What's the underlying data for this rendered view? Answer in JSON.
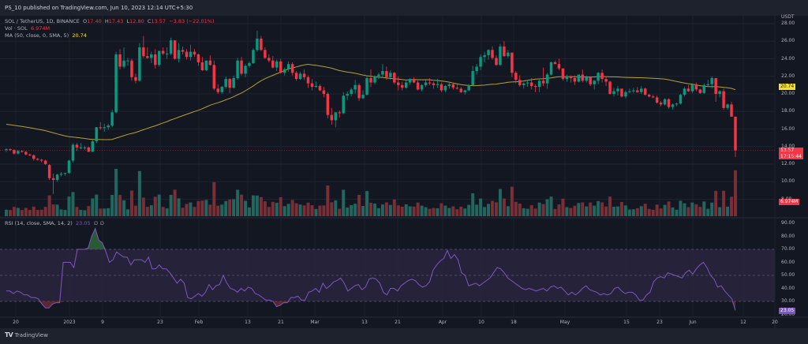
{
  "header": {
    "published": "PS_10 published on TradingView.com, Jun 10, 2023 12:14 UTC+5:30"
  },
  "legend": {
    "symbol": "SOL / TetherUS, 1D, BINANCE",
    "open_label": "O",
    "open": "17.40",
    "high_label": "H",
    "high": "17.43",
    "low_label": "L",
    "low": "12.80",
    "close_label": "C",
    "close": "13.57",
    "change": "−3.83 (−22.01%)",
    "volume_label": "Vol · SOL",
    "volume": "6.974M",
    "ma_label": "MA (50, close, 0, SMA, 5)",
    "ma_value": "20.74",
    "rsi_label": "RSI (14, close, SMA, 14, 2)",
    "rsi_value": "23.05",
    "rsi_extra1": "∅",
    "rsi_extra2": "∅"
  },
  "price_axis": {
    "currency": "USDT",
    "ticks": [
      "28.00",
      "26.00",
      "24.00",
      "22.00",
      "20.00",
      "18.00",
      "16.00",
      "14.00",
      "12.00",
      "10.00",
      "8.00"
    ],
    "ma_tag": "20.74",
    "last_price_tag": "13.57",
    "countdown_tag": "17:15:44",
    "volume_tag": "6.974M"
  },
  "rsi_axis": {
    "ticks": [
      "90.00",
      "80.00",
      "70.00",
      "60.00",
      "50.00",
      "40.00",
      "30.00",
      "20.00"
    ],
    "value_tag": "23.05"
  },
  "time_axis": {
    "labels": [
      "20",
      "2023",
      "9",
      "23",
      "Feb",
      "13",
      "21",
      "Mar",
      "13",
      "21",
      "Apr",
      "10",
      "18",
      "May",
      "15",
      "23",
      "Jun",
      "12",
      "20"
    ]
  },
  "footer": {
    "brand": "TradingView"
  },
  "colors": {
    "background": "#131722",
    "up": "#089981",
    "down": "#f23645",
    "ma": "#b5a22a",
    "rsi": "#7e57c2",
    "rsi_band": "#2a2540"
  },
  "chart_data": {
    "type": "candlestick",
    "title": "SOL / TetherUS, 1D, BINANCE",
    "ylabel": "USDT",
    "ylim": [
      8,
      28.5
    ],
    "x_range": "Dec 2022 – Jun 10, 2023",
    "last": {
      "open": 17.4,
      "high": 17.43,
      "low": 12.8,
      "close": 13.57,
      "change": -3.83,
      "change_pct": -22.01
    },
    "candles_ohlc": [
      [
        13.6,
        13.8,
        13.4,
        13.7
      ],
      [
        13.7,
        13.8,
        13.5,
        13.6
      ],
      [
        13.6,
        13.7,
        13.1,
        13.2
      ],
      [
        13.2,
        13.6,
        13.1,
        13.5
      ],
      [
        13.5,
        13.6,
        13.3,
        13.4
      ],
      [
        13.4,
        13.5,
        13.0,
        13.1
      ],
      [
        13.1,
        13.2,
        12.9,
        13.0
      ],
      [
        13.0,
        13.1,
        12.4,
        12.6
      ],
      [
        12.6,
        12.7,
        12.4,
        12.5
      ],
      [
        12.5,
        12.6,
        12.2,
        12.4
      ],
      [
        12.4,
        12.5,
        11.9,
        12.0
      ],
      [
        11.9,
        12.0,
        10.2,
        10.4
      ],
      [
        10.4,
        10.9,
        8.6,
        10.2
      ],
      [
        10.2,
        10.9,
        10.0,
        10.8
      ],
      [
        10.8,
        11.1,
        10.6,
        10.9
      ],
      [
        10.9,
        11.0,
        10.7,
        11.0
      ],
      [
        11.0,
        12.5,
        10.9,
        12.4
      ],
      [
        12.4,
        14.4,
        12.2,
        14.2
      ],
      [
        14.2,
        14.4,
        13.5,
        13.9
      ],
      [
        13.9,
        14.4,
        13.7,
        13.9
      ],
      [
        13.9,
        14.1,
        13.6,
        13.9
      ],
      [
        13.9,
        14.0,
        13.4,
        13.4
      ],
      [
        13.4,
        14.9,
        13.4,
        14.6
      ],
      [
        14.6,
        16.2,
        14.4,
        16.2
      ],
      [
        16.2,
        16.8,
        15.9,
        16.1
      ],
      [
        16.1,
        16.6,
        15.7,
        16.2
      ],
      [
        16.2,
        16.6,
        15.9,
        16.4
      ],
      [
        16.4,
        18.2,
        16.2,
        17.9
      ],
      [
        17.9,
        24.8,
        17.8,
        24.5
      ],
      [
        24.5,
        25.1,
        22.8,
        23.1
      ],
      [
        23.1,
        25.3,
        22.9,
        23.8
      ],
      [
        23.8,
        24.1,
        23.2,
        23.8
      ],
      [
        23.8,
        24.0,
        21.5,
        21.9
      ],
      [
        21.9,
        22.3,
        21.2,
        21.5
      ],
      [
        21.5,
        25.8,
        21.4,
        25.3
      ],
      [
        25.3,
        26.6,
        24.1,
        24.3
      ],
      [
        24.3,
        25.3,
        24.0,
        24.1
      ],
      [
        24.1,
        24.8,
        23.5,
        24.5
      ],
      [
        24.5,
        25.1,
        22.9,
        23.3
      ],
      [
        23.3,
        24.9,
        23.1,
        24.9
      ],
      [
        24.9,
        25.3,
        24.4,
        24.6
      ],
      [
        24.6,
        25.3,
        24.0,
        24.6
      ],
      [
        24.6,
        26.4,
        24.4,
        26.1
      ],
      [
        26.1,
        26.1,
        23.9,
        24.0
      ],
      [
        24.0,
        25.8,
        23.6,
        25.0
      ],
      [
        25.0,
        25.4,
        24.5,
        24.8
      ],
      [
        24.8,
        25.1,
        23.9,
        24.2
      ],
      [
        24.2,
        25.6,
        23.8,
        24.8
      ],
      [
        24.8,
        25.1,
        24.2,
        24.5
      ],
      [
        24.5,
        24.6,
        23.2,
        23.6
      ],
      [
        23.6,
        24.2,
        22.6,
        22.7
      ],
      [
        22.7,
        23.8,
        22.6,
        23.8
      ],
      [
        23.8,
        24.4,
        23.2,
        23.3
      ],
      [
        23.3,
        23.8,
        20.4,
        20.6
      ],
      [
        20.6,
        21.1,
        20.0,
        20.2
      ],
      [
        20.2,
        20.9,
        20.0,
        20.8
      ],
      [
        20.8,
        22.0,
        20.6,
        21.7
      ],
      [
        21.7,
        21.8,
        20.1,
        20.7
      ],
      [
        20.7,
        22.1,
        20.6,
        21.8
      ],
      [
        21.8,
        24.1,
        21.6,
        23.8
      ],
      [
        23.8,
        24.2,
        22.1,
        22.3
      ],
      [
        22.3,
        23.4,
        21.9,
        23.2
      ],
      [
        23.2,
        23.7,
        23.0,
        23.5
      ],
      [
        23.5,
        25.2,
        23.4,
        25.0
      ],
      [
        25.0,
        27.2,
        24.8,
        26.3
      ],
      [
        26.3,
        26.6,
        24.9,
        25.0
      ],
      [
        25.0,
        25.3,
        24.0,
        24.1
      ],
      [
        24.1,
        24.5,
        23.6,
        23.8
      ],
      [
        23.8,
        24.3,
        22.9,
        23.0
      ],
      [
        23.0,
        23.9,
        22.6,
        23.7
      ],
      [
        23.7,
        24.0,
        22.3,
        22.4
      ],
      [
        22.4,
        23.0,
        22.1,
        22.8
      ],
      [
        22.8,
        23.7,
        22.5,
        23.4
      ],
      [
        23.4,
        23.6,
        22.1,
        22.4
      ],
      [
        22.4,
        22.6,
        21.5,
        21.7
      ],
      [
        21.7,
        22.5,
        21.6,
        22.3
      ],
      [
        22.3,
        22.8,
        21.6,
        21.9
      ],
      [
        21.9,
        22.1,
        20.7,
        21.2
      ],
      [
        21.2,
        21.7,
        20.4,
        20.8
      ],
      [
        20.8,
        21.4,
        20.7,
        20.9
      ],
      [
        20.9,
        21.1,
        20.3,
        20.4
      ],
      [
        20.4,
        20.8,
        19.6,
        20.0
      ],
      [
        20.0,
        20.2,
        17.2,
        17.6
      ],
      [
        17.6,
        18.4,
        16.5,
        17.0
      ],
      [
        17.0,
        17.9,
        16.2,
        17.9
      ],
      [
        17.9,
        18.1,
        17.3,
        17.8
      ],
      [
        17.8,
        20.2,
        17.7,
        19.8
      ],
      [
        19.8,
        20.3,
        19.3,
        20.0
      ],
      [
        20.0,
        20.7,
        19.7,
        20.5
      ],
      [
        20.5,
        21.6,
        20.0,
        21.0
      ],
      [
        21.0,
        21.2,
        19.2,
        19.5
      ],
      [
        19.5,
        20.4,
        19.4,
        19.9
      ],
      [
        19.9,
        22.1,
        19.8,
        21.8
      ],
      [
        21.8,
        22.8,
        20.8,
        21.3
      ],
      [
        21.3,
        22.1,
        21.1,
        22.0
      ],
      [
        22.0,
        22.4,
        21.7,
        22.2
      ],
      [
        22.2,
        23.4,
        21.8,
        22.6
      ],
      [
        22.6,
        23.1,
        21.6,
        21.9
      ],
      [
        21.9,
        22.7,
        21.6,
        22.4
      ],
      [
        22.4,
        22.5,
        21.1,
        21.3
      ],
      [
        21.3,
        22.0,
        20.4,
        21.0
      ],
      [
        21.0,
        21.4,
        20.4,
        20.7
      ],
      [
        20.7,
        21.6,
        20.6,
        21.3
      ],
      [
        21.3,
        21.8,
        21.0,
        21.7
      ],
      [
        21.7,
        21.9,
        21.2,
        21.3
      ],
      [
        21.3,
        21.5,
        20.4,
        20.5
      ],
      [
        20.5,
        21.1,
        20.3,
        21.0
      ],
      [
        21.0,
        21.6,
        20.8,
        21.3
      ],
      [
        21.3,
        21.8,
        21.0,
        21.2
      ],
      [
        21.2,
        21.4,
        20.6,
        21.0
      ],
      [
        21.0,
        21.7,
        20.7,
        21.1
      ],
      [
        21.1,
        21.3,
        20.2,
        20.4
      ],
      [
        20.4,
        21.0,
        20.2,
        20.9
      ],
      [
        20.9,
        21.4,
        20.6,
        21.1
      ],
      [
        21.1,
        21.3,
        20.5,
        20.7
      ],
      [
        20.7,
        21.1,
        20.5,
        20.6
      ],
      [
        20.6,
        20.8,
        20.1,
        20.2
      ],
      [
        20.2,
        20.5,
        19.9,
        20.4
      ],
      [
        20.4,
        21.1,
        20.3,
        21.0
      ],
      [
        21.0,
        23.2,
        20.9,
        22.6
      ],
      [
        22.6,
        23.4,
        22.2,
        23.1
      ],
      [
        23.1,
        24.5,
        22.7,
        24.2
      ],
      [
        24.2,
        24.8,
        23.6,
        24.4
      ],
      [
        24.4,
        25.1,
        23.9,
        25.0
      ],
      [
        25.0,
        25.4,
        23.9,
        24.1
      ],
      [
        24.1,
        24.4,
        23.2,
        23.3
      ],
      [
        23.3,
        25.7,
        23.2,
        25.4
      ],
      [
        25.4,
        26.0,
        24.2,
        24.3
      ],
      [
        24.3,
        25.0,
        24.1,
        24.7
      ],
      [
        24.7,
        24.7,
        21.9,
        22.4
      ],
      [
        22.4,
        22.6,
        21.2,
        21.6
      ],
      [
        21.6,
        22.1,
        20.8,
        21.0
      ],
      [
        21.0,
        21.3,
        20.6,
        21.2
      ],
      [
        21.2,
        21.6,
        20.8,
        21.3
      ],
      [
        21.3,
        21.8,
        20.5,
        20.9
      ],
      [
        20.9,
        21.1,
        20.2,
        20.8
      ],
      [
        20.8,
        21.6,
        20.2,
        21.5
      ],
      [
        21.5,
        23.0,
        20.9,
        21.2
      ],
      [
        21.2,
        22.4,
        20.6,
        22.2
      ],
      [
        22.2,
        23.7,
        22.1,
        23.6
      ],
      [
        23.6,
        23.8,
        23.4,
        23.4
      ],
      [
        23.4,
        24.0,
        22.7,
        22.9
      ],
      [
        22.9,
        22.9,
        21.5,
        21.7
      ],
      [
        21.7,
        22.2,
        21.4,
        22.0
      ],
      [
        22.0,
        22.1,
        21.3,
        21.8
      ],
      [
        21.8,
        22.1,
        21.0,
        21.4
      ],
      [
        21.4,
        22.2,
        21.3,
        22.2
      ],
      [
        22.2,
        22.8,
        21.3,
        21.5
      ],
      [
        21.5,
        22.1,
        21.3,
        21.9
      ],
      [
        21.9,
        22.0,
        20.9,
        21.1
      ],
      [
        21.1,
        21.6,
        20.5,
        21.5
      ],
      [
        21.5,
        22.5,
        21.1,
        22.4
      ],
      [
        22.4,
        22.8,
        21.3,
        21.7
      ],
      [
        21.7,
        22.0,
        20.9,
        21.4
      ],
      [
        21.4,
        21.5,
        19.9,
        20.0
      ],
      [
        20.0,
        20.7,
        19.7,
        20.3
      ],
      [
        20.3,
        20.9,
        19.8,
        20.6
      ],
      [
        20.6,
        20.6,
        19.6,
        19.7
      ],
      [
        19.7,
        20.4,
        19.5,
        20.2
      ],
      [
        20.2,
        20.6,
        20.1,
        20.3
      ],
      [
        20.3,
        20.7,
        20.1,
        20.4
      ],
      [
        20.4,
        20.8,
        20.1,
        20.2
      ],
      [
        20.2,
        20.9,
        20.0,
        20.6
      ],
      [
        20.6,
        20.7,
        19.8,
        19.9
      ],
      [
        19.9,
        20.0,
        19.6,
        19.7
      ],
      [
        19.7,
        19.9,
        19.5,
        19.6
      ],
      [
        19.6,
        19.8,
        18.9,
        19.0
      ],
      [
        19.0,
        19.2,
        18.6,
        18.8
      ],
      [
        18.8,
        19.5,
        18.7,
        19.4
      ],
      [
        19.4,
        19.5,
        18.3,
        18.5
      ],
      [
        18.5,
        18.9,
        18.2,
        18.8
      ],
      [
        18.8,
        19.0,
        18.6,
        18.9
      ],
      [
        18.9,
        20.0,
        18.8,
        19.9
      ],
      [
        19.9,
        20.8,
        19.7,
        20.6
      ],
      [
        20.6,
        21.0,
        20.2,
        20.3
      ],
      [
        20.3,
        21.2,
        20.1,
        21.1
      ],
      [
        21.1,
        21.3,
        20.3,
        20.5
      ],
      [
        20.5,
        20.6,
        20.0,
        20.1
      ],
      [
        20.1,
        21.2,
        20.0,
        21.0
      ],
      [
        21.0,
        21.6,
        20.8,
        21.1
      ],
      [
        21.1,
        22.0,
        20.6,
        21.8
      ],
      [
        21.8,
        21.8,
        19.1,
        20.0
      ],
      [
        20.0,
        20.4,
        19.6,
        20.3
      ],
      [
        20.3,
        20.6,
        18.2,
        18.4
      ],
      [
        18.4,
        18.9,
        18.2,
        18.8
      ],
      [
        18.8,
        19.1,
        17.6,
        17.4
      ],
      [
        17.4,
        17.43,
        12.8,
        13.57
      ]
    ],
    "ma50": {
      "label": "MA (50, close, 0, SMA, 5)",
      "last": 20.74,
      "shape": "falls from ~16.6 to ~13.0 bottom mid-Jan, rises to ~23.4 around Mar 1, flat ~21-22 through May, declines to 20.74"
    },
    "volume": {
      "label": "Vol · SOL",
      "last": "6.974M"
    },
    "rsi": {
      "label": "RSI (14, close, SMA, 14, 2)",
      "last": 23.05,
      "overbought": 70,
      "middle": 50,
      "oversold": 30,
      "ylim": [
        20,
        90
      ],
      "points": [
        38,
        38,
        36,
        38,
        37,
        35,
        35,
        33,
        33,
        32,
        28,
        25,
        25,
        28,
        29,
        29,
        60,
        60,
        60,
        56,
        70,
        70,
        70,
        71,
        80,
        86,
        77,
        75,
        68,
        60,
        62,
        68,
        66,
        64,
        64,
        58,
        62,
        62,
        62,
        60,
        64,
        55,
        55,
        58,
        55,
        55,
        52,
        48,
        44,
        47,
        44,
        33,
        32,
        34,
        36,
        34,
        37,
        43,
        39,
        42,
        43,
        50,
        44,
        40,
        39,
        37,
        40,
        38,
        41,
        40,
        36,
        35,
        33,
        31,
        31,
        30,
        26,
        27,
        29,
        29,
        33,
        33,
        34,
        31,
        31,
        37,
        38,
        40,
        37,
        44,
        40,
        42,
        45,
        46,
        48,
        44,
        38,
        40,
        42,
        43,
        39,
        41,
        47,
        48,
        47,
        44,
        37,
        35,
        40,
        40,
        38,
        42,
        44,
        46,
        47,
        46,
        43,
        41,
        42,
        45,
        54,
        58,
        61,
        63,
        69,
        63,
        66,
        62,
        52,
        50,
        42,
        43,
        44,
        42,
        44,
        46,
        48,
        52,
        56,
        55,
        52,
        48,
        46,
        44,
        42,
        40,
        39,
        40,
        39,
        38,
        39,
        40,
        38,
        41,
        42,
        40,
        41,
        38,
        35,
        37,
        35,
        37,
        40,
        42,
        39,
        38,
        37,
        35,
        36,
        35,
        36,
        40,
        41,
        38,
        36,
        37,
        37,
        35,
        31,
        31,
        35,
        37,
        45,
        48,
        49,
        48,
        52,
        51,
        50,
        49,
        48,
        52,
        54,
        51,
        55,
        58,
        60,
        56,
        50,
        47,
        41,
        42,
        38,
        35,
        32,
        23.05
      ]
    },
    "xlabels": [
      "20",
      "2023",
      "9",
      "23",
      "Feb",
      "13",
      "21",
      "Mar",
      "13",
      "21",
      "Apr",
      "10",
      "18",
      "May",
      "15",
      "23",
      "Jun",
      "12",
      "20"
    ]
  }
}
